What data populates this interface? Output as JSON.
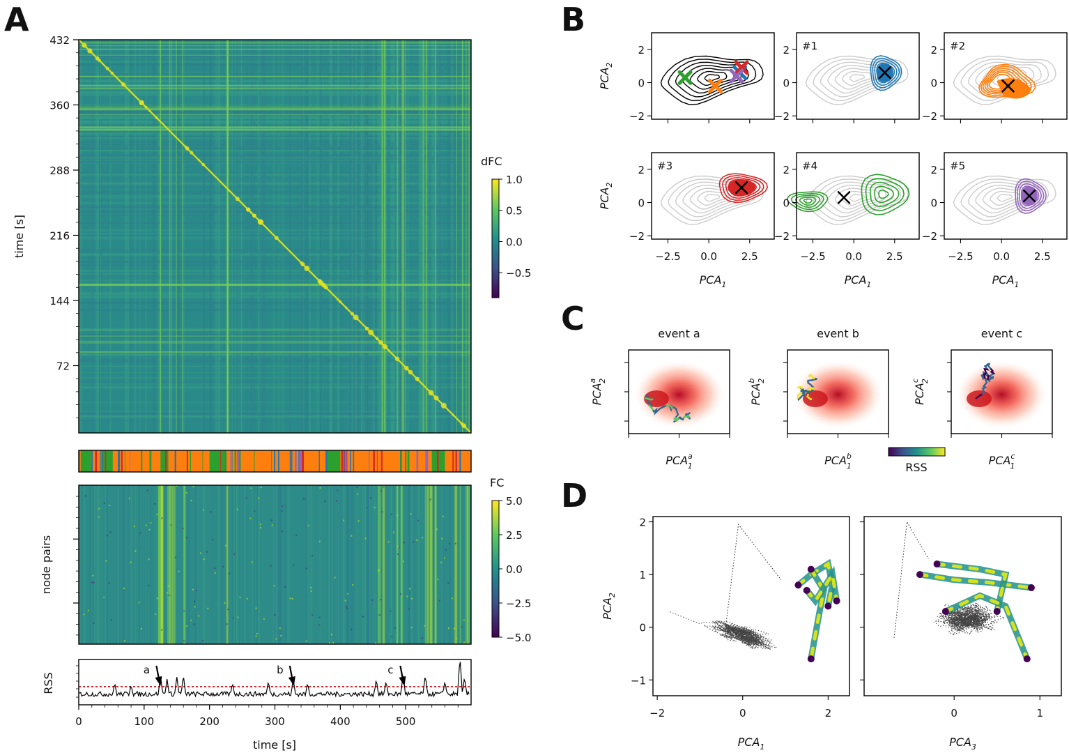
{
  "panels": {
    "A": {
      "label": "A",
      "dfc_matrix": {
        "ylabel": "time [s]",
        "yticks": [
          "432",
          "360",
          "288",
          "216",
          "144",
          "72"
        ],
        "colorbar": {
          "label": "dFC",
          "ticks": [
            "1.0",
            "0.5",
            "0.0",
            "−0.5"
          ],
          "range": [
            -0.9,
            1.0
          ],
          "colormap": "viridis"
        }
      },
      "state_bar": {
        "colors": [
          "#1f77b4",
          "#ff7f0e",
          "#2ca02c",
          "#d62728",
          "#9467bd"
        ]
      },
      "fc_matrix": {
        "ylabel": "node pairs",
        "colorbar": {
          "label": "FC",
          "ticks": [
            "5.0",
            "2.5",
            "0.0",
            "−2.5",
            "−5.0"
          ],
          "range": [
            -5,
            5
          ],
          "colormap": "viridis"
        }
      },
      "rss": {
        "ylabel": "RSS",
        "xlabel": "time [s]",
        "xticks": [
          "0",
          "100",
          "200",
          "300",
          "400",
          "500"
        ],
        "xlim": [
          0,
          600
        ],
        "threshold_color": "#d62728",
        "events": [
          {
            "label": "a",
            "time": 123
          },
          {
            "label": "b",
            "time": 327
          },
          {
            "label": "c",
            "time": 496
          }
        ]
      }
    },
    "B": {
      "label": "B",
      "xlabel": "PCA",
      "xlabel_sub": "1",
      "ylabel": "PCA",
      "ylabel_sub": "2",
      "xticks": [
        "−2.5",
        "0.0",
        "2.5"
      ],
      "yticks": [
        "2",
        "0",
        "−2"
      ],
      "xlim": [
        -3.5,
        4.0
      ],
      "ylim": [
        -2.2,
        3.0
      ],
      "clusters": [
        {
          "label": "#1",
          "color": "#1f77b4",
          "center": [
            1.9,
            0.6
          ]
        },
        {
          "label": "#2",
          "color": "#ff7f0e",
          "center": [
            0.4,
            -0.2
          ]
        },
        {
          "label": "#3",
          "color": "#d62728",
          "center": [
            2.0,
            0.9
          ]
        },
        {
          "label": "#4",
          "color": "#2ca02c",
          "center": [
            -0.6,
            0.3
          ]
        },
        {
          "label": "#5",
          "color": "#9467bd",
          "center": [
            1.7,
            0.4
          ]
        }
      ]
    },
    "C": {
      "label": "C",
      "events": [
        {
          "title": "event a",
          "xlabel": "PCA",
          "xsub": "1",
          "xsup": "a",
          "ylabel": "PCA",
          "ysub": "2",
          "ysup": "a"
        },
        {
          "title": "event b",
          "xlabel": "PCA",
          "xsub": "1",
          "xsup": "b",
          "ylabel": "PCA",
          "ysub": "2",
          "ysup": "b"
        },
        {
          "title": "event c",
          "xlabel": "PCA",
          "xsub": "1",
          "xsup": "c",
          "ylabel": "PCA",
          "ysub": "2",
          "ysup": "c"
        }
      ],
      "colorbar_label": "RSS"
    },
    "D": {
      "label": "D",
      "ylabel": "PCA",
      "ylabel_sub": "2",
      "yticks": [
        "2",
        "1",
        "0",
        "−1"
      ],
      "ylim": [
        -1.3,
        2.1
      ],
      "left": {
        "xlabel": "PCA",
        "xlabel_sub": "1",
        "xticks": [
          "−2",
          "0",
          "2"
        ],
        "xlim": [
          -2.1,
          2.5
        ]
      },
      "right": {
        "xlabel": "PCA",
        "xlabel_sub": "3",
        "xticks": [
          "0",
          "1"
        ],
        "xlim": [
          -1.05,
          1.25
        ]
      }
    }
  }
}
